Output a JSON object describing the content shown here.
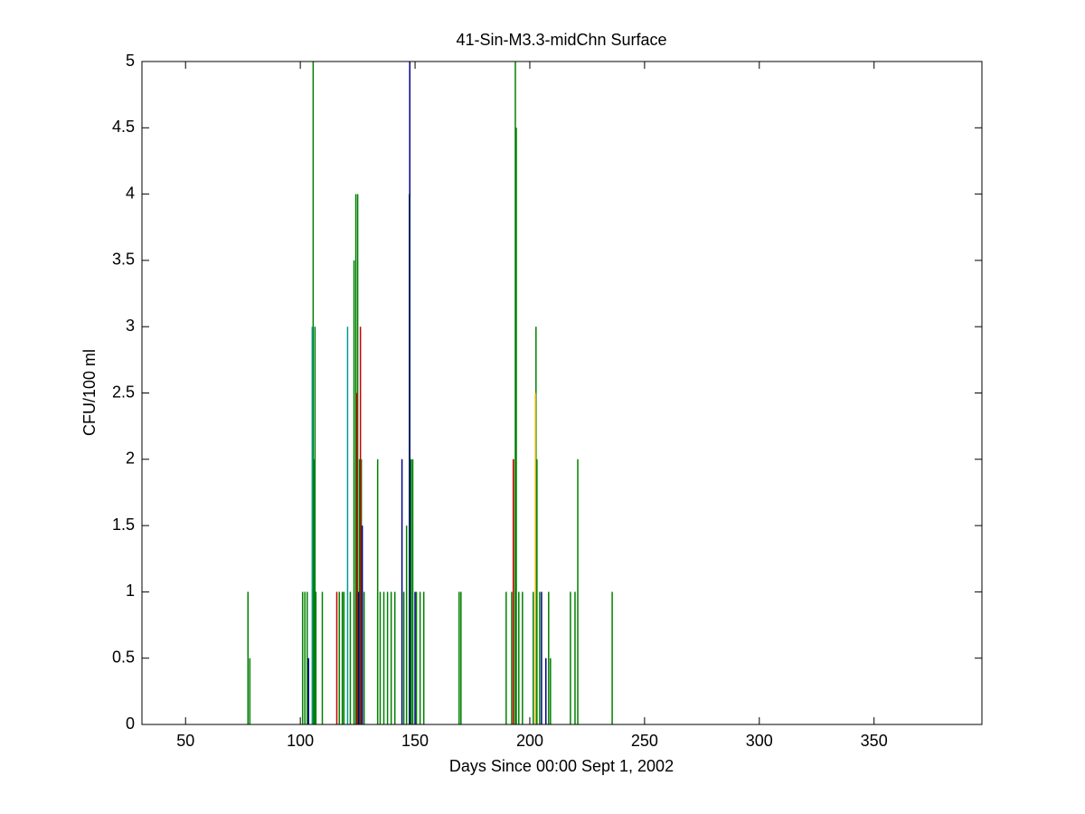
{
  "chart_data": {
    "type": "stem",
    "title": "41-Sin-M3.3-midChn Surface",
    "x_label": "Days Since 00:00 Sept 1, 2002",
    "y_label": "CFU/100 ml",
    "xlim": [
      31,
      397
    ],
    "ylim": [
      0,
      5
    ],
    "xticks": [
      50,
      100,
      150,
      200,
      250,
      300,
      350
    ],
    "yticks": [
      0,
      0.5,
      1,
      1.5,
      2,
      2.5,
      3,
      3.5,
      4,
      4.5,
      5
    ],
    "series": [
      {
        "color": "#008000",
        "x": [
          77.2,
          78,
          101,
          102,
          103,
          105.6,
          106,
          106.4,
          106.8,
          109.6,
          117,
          118.3,
          119,
          121.8,
          123.4,
          124.2,
          125,
          125.8,
          126.6,
          127.8,
          133.7,
          134.8,
          136.4,
          138,
          139.6,
          141.2,
          145.1,
          146.3,
          147.5,
          148.3,
          149,
          150.6,
          152.2,
          153.8,
          169.2,
          170,
          189.7,
          192.1,
          192.9,
          193.7,
          194.1,
          195.2,
          196.8,
          201.5,
          202.7,
          203.1,
          204.3,
          208.2,
          209,
          217.7,
          219.7,
          220.9,
          235.9
        ],
        "values": [
          1,
          0.5,
          1,
          1,
          1,
          5,
          2,
          3,
          1,
          1,
          1,
          1,
          1,
          1,
          3.5,
          4,
          4,
          2,
          2,
          1,
          2,
          1,
          1,
          1,
          1,
          1,
          1,
          1.5,
          4,
          2,
          2,
          1,
          1,
          1,
          1,
          1,
          1,
          1,
          2,
          5,
          4.5,
          1,
          1,
          1,
          3,
          2,
          1,
          1,
          0.5,
          1,
          1,
          2,
          1
        ]
      },
      {
        "color": "#00008b",
        "x": [
          103.6,
          125.4,
          127,
          144.3,
          147.7,
          150,
          205.1,
          207
        ],
        "values": [
          0.5,
          1,
          1.5,
          2,
          5,
          1,
          1,
          0.5
        ]
      },
      {
        "color": "#cc0000",
        "x": [
          115.9,
          124.6,
          126.2,
          192.8
        ],
        "values": [
          1,
          2.5,
          3,
          2
        ]
      },
      {
        "color": "#009999",
        "x": [
          105.2,
          120.6
        ],
        "values": [
          3,
          3
        ]
      },
      {
        "color": "#d4b000",
        "x": [
          202.5
        ],
        "values": [
          2.5
        ]
      }
    ]
  }
}
